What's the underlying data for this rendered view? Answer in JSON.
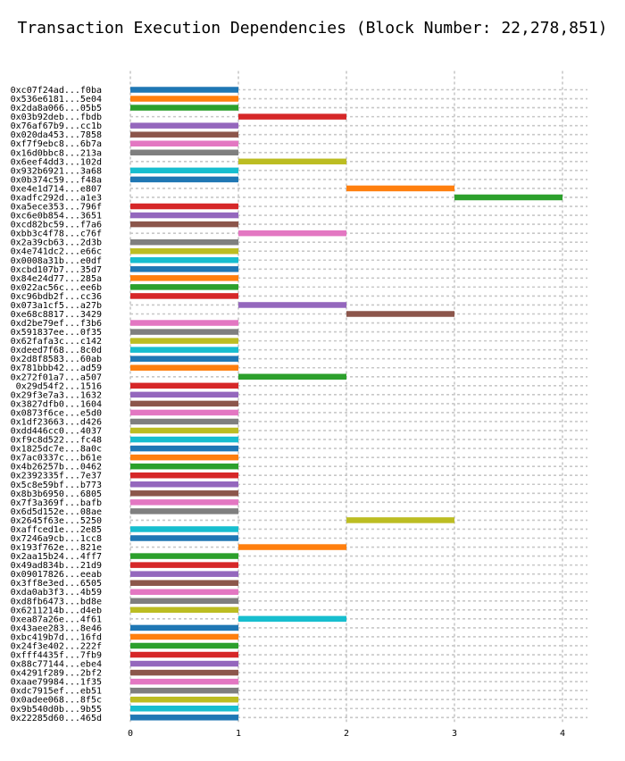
{
  "chart_data": {
    "type": "bar",
    "orientation": "horizontal",
    "subtype": "gantt",
    "title": "Transaction Execution Dependencies (Block Number: 22,278,851)",
    "xlabel": "",
    "ylabel": "",
    "xlim": [
      0,
      4
    ],
    "xticks": [
      0,
      1,
      2,
      3,
      4
    ],
    "grid": true,
    "palette": [
      "#1f77b4",
      "#ff7f0e",
      "#2ca02c",
      "#d62728",
      "#9467bd",
      "#8c564b",
      "#e377c2",
      "#7f7f7f",
      "#bcbd22",
      "#17becf"
    ],
    "transactions": [
      {
        "label": "0xc07f24ad...f0ba",
        "start": 0,
        "end": 1
      },
      {
        "label": "0x536e6181...5e04",
        "start": 0,
        "end": 1
      },
      {
        "label": "0x2da8a066...05b5",
        "start": 0,
        "end": 1
      },
      {
        "label": "0x03b92deb...fbdb",
        "start": 1,
        "end": 2
      },
      {
        "label": "0x76af67b9...cc1b",
        "start": 0,
        "end": 1
      },
      {
        "label": "0x020da453...7858",
        "start": 0,
        "end": 1
      },
      {
        "label": "0xf7f9ebc8...6b7a",
        "start": 0,
        "end": 1
      },
      {
        "label": "0x16d0bbc8...213a",
        "start": 0,
        "end": 1
      },
      {
        "label": "0x6eef4dd3...102d",
        "start": 1,
        "end": 2
      },
      {
        "label": "0x932b6921...3a68",
        "start": 0,
        "end": 1
      },
      {
        "label": "0x0b374c59...f48a",
        "start": 0,
        "end": 1
      },
      {
        "label": "0xe4e1d714...e807",
        "start": 2,
        "end": 3
      },
      {
        "label": "0xadfc292d...a1e3",
        "start": 3,
        "end": 4
      },
      {
        "label": "0xa5ece353...796f",
        "start": 0,
        "end": 1
      },
      {
        "label": "0xc6e0b854...3651",
        "start": 0,
        "end": 1
      },
      {
        "label": "0xcd82bc59...f7a6",
        "start": 0,
        "end": 1
      },
      {
        "label": "0xbb3c4f78...c76f",
        "start": 1,
        "end": 2
      },
      {
        "label": "0x2a39cb63...2d3b",
        "start": 0,
        "end": 1
      },
      {
        "label": "0x4e741dc2...e66c",
        "start": 0,
        "end": 1
      },
      {
        "label": "0x0008a31b...e0df",
        "start": 0,
        "end": 1
      },
      {
        "label": "0xcbd107b7...35d7",
        "start": 0,
        "end": 1
      },
      {
        "label": "0x84e24d77...285a",
        "start": 0,
        "end": 1
      },
      {
        "label": "0x022ac56c...ee6b",
        "start": 0,
        "end": 1
      },
      {
        "label": "0xc96bdb2f...cc36",
        "start": 0,
        "end": 1
      },
      {
        "label": "0x073a1cf5...a27b",
        "start": 1,
        "end": 2
      },
      {
        "label": "0xe68c8817...3429",
        "start": 2,
        "end": 3
      },
      {
        "label": "0xd2be79ef...f3b6",
        "start": 0,
        "end": 1
      },
      {
        "label": "0x591837ee...0f35",
        "start": 0,
        "end": 1
      },
      {
        "label": "0x62fafa3c...c142",
        "start": 0,
        "end": 1
      },
      {
        "label": "0xdeed7f68...8c0d",
        "start": 0,
        "end": 1
      },
      {
        "label": "0x2d8f8583...60ab",
        "start": 0,
        "end": 1
      },
      {
        "label": "0x781bbb42...ad59",
        "start": 0,
        "end": 1
      },
      {
        "label": "0x272f01a7...a507",
        "start": 1,
        "end": 2
      },
      {
        "label": "0x29d54f2...1516",
        "start": 0,
        "end": 1
      },
      {
        "label": "0x29f3e7a3...1632",
        "start": 0,
        "end": 1
      },
      {
        "label": "0x3827dfb0...1604",
        "start": 0,
        "end": 1
      },
      {
        "label": "0x0873f6ce...e5d0",
        "start": 0,
        "end": 1
      },
      {
        "label": "0x1df23663...d426",
        "start": 0,
        "end": 1
      },
      {
        "label": "0xdd446cc0...4037",
        "start": 0,
        "end": 1
      },
      {
        "label": "0xf9c8d522...fc48",
        "start": 0,
        "end": 1
      },
      {
        "label": "0x1825dc7e...8a0c",
        "start": 0,
        "end": 1
      },
      {
        "label": "0x7ac0337c...b61e",
        "start": 0,
        "end": 1
      },
      {
        "label": "0x4b26257b...0462",
        "start": 0,
        "end": 1
      },
      {
        "label": "0x2392335f...7e37",
        "start": 0,
        "end": 1
      },
      {
        "label": "0x5c8e59bf...b773",
        "start": 0,
        "end": 1
      },
      {
        "label": "0x8b3b6950...6805",
        "start": 0,
        "end": 1
      },
      {
        "label": "0x7f3a369f...bafb",
        "start": 0,
        "end": 1
      },
      {
        "label": "0x6d5d152e...08ae",
        "start": 0,
        "end": 1
      },
      {
        "label": "0x2645f63e...5250",
        "start": 2,
        "end": 3
      },
      {
        "label": "0xaffced1e...2e85",
        "start": 0,
        "end": 1
      },
      {
        "label": "0x7246a9cb...1cc8",
        "start": 0,
        "end": 1
      },
      {
        "label": "0x193f762e...821e",
        "start": 1,
        "end": 2
      },
      {
        "label": "0x2aa15b24...4ff7",
        "start": 0,
        "end": 1
      },
      {
        "label": "0x49ad834b...21d9",
        "start": 0,
        "end": 1
      },
      {
        "label": "0x09017826...eeab",
        "start": 0,
        "end": 1
      },
      {
        "label": "0x3ff8e3ed...6505",
        "start": 0,
        "end": 1
      },
      {
        "label": "0xda0ab3f3...4b59",
        "start": 0,
        "end": 1
      },
      {
        "label": "0xd8fb6473...bd8e",
        "start": 0,
        "end": 1
      },
      {
        "label": "0x6211214b...d4eb",
        "start": 0,
        "end": 1
      },
      {
        "label": "0xea87a26e...4f61",
        "start": 1,
        "end": 2
      },
      {
        "label": "0x43aee283...8e46",
        "start": 0,
        "end": 1
      },
      {
        "label": "0xbc419b7d...16fd",
        "start": 0,
        "end": 1
      },
      {
        "label": "0x24f3e402...222f",
        "start": 0,
        "end": 1
      },
      {
        "label": "0xfff4435f...7fb9",
        "start": 0,
        "end": 1
      },
      {
        "label": "0x88c77144...ebe4",
        "start": 0,
        "end": 1
      },
      {
        "label": "0x4291f289...2bf2",
        "start": 0,
        "end": 1
      },
      {
        "label": "0xaae79984...1f35",
        "start": 0,
        "end": 1
      },
      {
        "label": "0xdc7915ef...eb51",
        "start": 0,
        "end": 1
      },
      {
        "label": "0x0adee068...8f5c",
        "start": 0,
        "end": 1
      },
      {
        "label": "0x9b540d0b...9b55",
        "start": 0,
        "end": 1
      },
      {
        "label": "0x22285d60...465d",
        "start": 0,
        "end": 1
      }
    ]
  }
}
